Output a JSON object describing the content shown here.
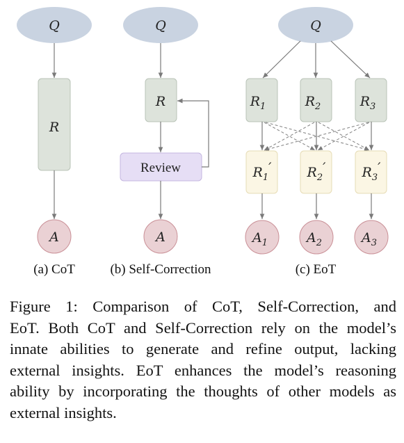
{
  "colors": {
    "query_fill": "#c9d3e1",
    "reason_fill": "#dde3db",
    "review_fill": "#e6def5",
    "refined_fill": "#fbf6e4",
    "answer_fill": "#ead1d4",
    "edge": "#7a7a7a"
  },
  "panels": {
    "cot": {
      "label": "(a) CoT",
      "q": "Q",
      "r": "R",
      "a": "A"
    },
    "self_correction": {
      "label": "(b) Self-Correction",
      "q": "Q",
      "r": "R",
      "review": "Review",
      "a": "A"
    },
    "eot": {
      "label": "(c) EoT",
      "q": "Q",
      "reasoners": [
        "R",
        "R",
        "R"
      ],
      "reasoner_subs": [
        "1",
        "2",
        "3"
      ],
      "prime": "′",
      "answers": [
        "A",
        "A",
        "A"
      ],
      "answer_subs": [
        "1",
        "2",
        "3"
      ]
    }
  },
  "caption": {
    "lines": [
      "Figure 1: Comparison of CoT, Self-Correction, and",
      "EoT. Both CoT and Self-Correction rely on the model’s",
      "innate abilities to generate and refine output, lacking",
      "external insights. EoT enhances the model’s reasoning",
      "ability by incorporating the thoughts of other models as",
      "external insights."
    ]
  }
}
